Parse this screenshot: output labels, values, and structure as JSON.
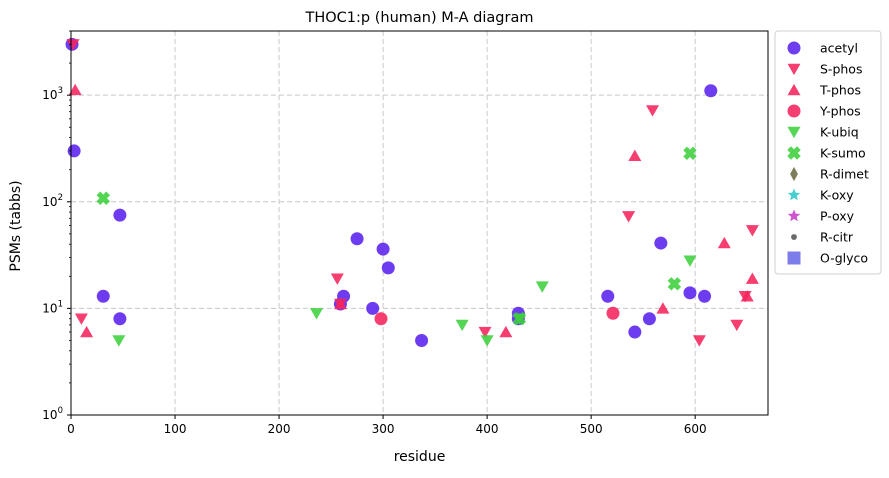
{
  "chart_data": {
    "type": "scatter",
    "title": "THOC1:p (human) M-A diagram",
    "xlabel": "residue",
    "ylabel": "PSMs (tabbs)",
    "xlim": [
      0,
      670
    ],
    "ylim": [
      1,
      4000
    ],
    "yscale": "log",
    "grid": true,
    "legend_position": "outside-right",
    "x_ticks": [
      {
        "value": 0,
        "label": "0"
      },
      {
        "value": 100,
        "label": "100"
      },
      {
        "value": 200,
        "label": "200"
      },
      {
        "value": 300,
        "label": "300"
      },
      {
        "value": 400,
        "label": "400"
      },
      {
        "value": 500,
        "label": "500"
      },
      {
        "value": 600,
        "label": "600"
      }
    ],
    "y_ticks": [
      {
        "value": 1,
        "base": "10",
        "exp": "0"
      },
      {
        "value": 10,
        "base": "10",
        "exp": "1"
      },
      {
        "value": 100,
        "base": "10",
        "exp": "2"
      },
      {
        "value": 1000,
        "base": "10",
        "exp": "3"
      }
    ],
    "series": [
      {
        "name": "acetyl",
        "marker": "circle",
        "color": "#5a22ee",
        "points": [
          [
            1,
            3000
          ],
          [
            3,
            300
          ],
          [
            31,
            13
          ],
          [
            47,
            75
          ],
          [
            47,
            8
          ],
          [
            259,
            11
          ],
          [
            262,
            13
          ],
          [
            275,
            45
          ],
          [
            290,
            10
          ],
          [
            300,
            36
          ],
          [
            305,
            24
          ],
          [
            337,
            5
          ],
          [
            430,
            9
          ],
          [
            430,
            8
          ],
          [
            516,
            13
          ],
          [
            542,
            6
          ],
          [
            556,
            8
          ],
          [
            567,
            41
          ],
          [
            595,
            14
          ],
          [
            609,
            13
          ],
          [
            615,
            1100
          ]
        ]
      },
      {
        "name": "S-phos",
        "marker": "triangle-down",
        "color": "#f5245c",
        "points": [
          [
            2,
            3000
          ],
          [
            10,
            8
          ],
          [
            256,
            19
          ],
          [
            259,
            11
          ],
          [
            398,
            6
          ],
          [
            536,
            73
          ],
          [
            559,
            720
          ],
          [
            604,
            5
          ],
          [
            640,
            7
          ],
          [
            648,
            13
          ],
          [
            655,
            54
          ]
        ]
      },
      {
        "name": "T-phos",
        "marker": "triangle-up",
        "color": "#f5245c",
        "points": [
          [
            4,
            1120
          ],
          [
            15,
            6
          ],
          [
            259,
            11
          ],
          [
            418,
            6
          ],
          [
            542,
            270
          ],
          [
            569,
            10
          ],
          [
            628,
            41
          ],
          [
            650,
            13
          ],
          [
            655,
            19
          ]
        ]
      },
      {
        "name": "Y-phos",
        "marker": "circle",
        "color": "#f5245c",
        "points": [
          [
            298,
            8
          ],
          [
            521,
            9
          ]
        ]
      },
      {
        "name": "K-ubiq",
        "marker": "triangle-down",
        "color": "#3dd03d",
        "points": [
          [
            46,
            5
          ],
          [
            236,
            9
          ],
          [
            376,
            7
          ],
          [
            400,
            5
          ],
          [
            431,
            8
          ],
          [
            453,
            16
          ],
          [
            595,
            28
          ]
        ]
      },
      {
        "name": "K-sumo",
        "marker": "x",
        "color": "#3dd03d",
        "points": [
          [
            31,
            108
          ],
          [
            431,
            8
          ],
          [
            580,
            17
          ],
          [
            595,
            285
          ]
        ]
      },
      {
        "name": "R-dimet",
        "marker": "diamond",
        "color": "#6b6b40",
        "points": []
      },
      {
        "name": "K-oxy",
        "marker": "star",
        "color": "#2ec6c6",
        "points": []
      },
      {
        "name": "P-oxy",
        "marker": "star",
        "color": "#c83ec8",
        "points": []
      },
      {
        "name": "R-citr",
        "marker": "dot",
        "color": "#555555",
        "points": []
      },
      {
        "name": "O-glyco",
        "marker": "square",
        "color": "#6a6ae8",
        "points": []
      }
    ]
  }
}
